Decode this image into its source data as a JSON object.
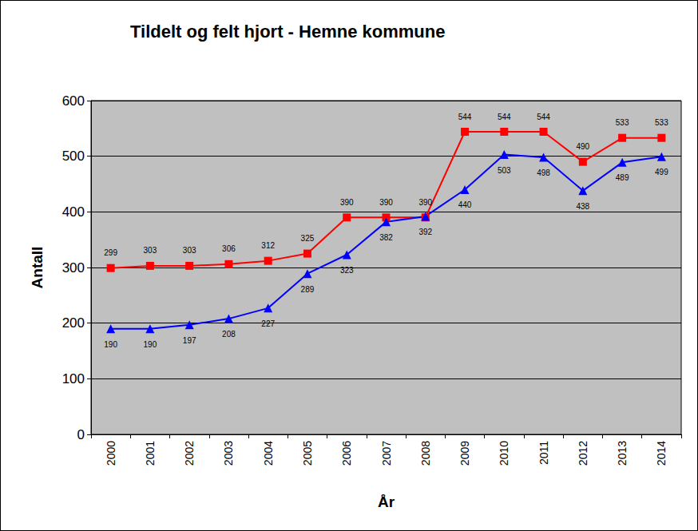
{
  "chart_data": {
    "type": "line",
    "title": "Tildelt og felt hjort - Hemne kommune",
    "x_label": "År",
    "y_label": "Antall",
    "categories": [
      "2000",
      "2001",
      "2002",
      "2003",
      "2004",
      "2005",
      "2006",
      "2007",
      "2008",
      "2009",
      "2010",
      "2011",
      "2012",
      "2013",
      "2014"
    ],
    "series": [
      {
        "color": "#ff0000",
        "marker": "square",
        "values": [
          299,
          303,
          303,
          306,
          312,
          325,
          390,
          390,
          390,
          544,
          544,
          544,
          490,
          533,
          533
        ]
      },
      {
        "color": "#0000ff",
        "marker": "triangle",
        "values": [
          190,
          190,
          197,
          208,
          227,
          289,
          323,
          382,
          392,
          440,
          503,
          498,
          438,
          489,
          499
        ]
      }
    ],
    "ylim": [
      0,
      600
    ],
    "yticks": [
      0,
      100,
      200,
      300,
      400,
      500,
      600
    ],
    "grid": true,
    "data_labels": true
  }
}
